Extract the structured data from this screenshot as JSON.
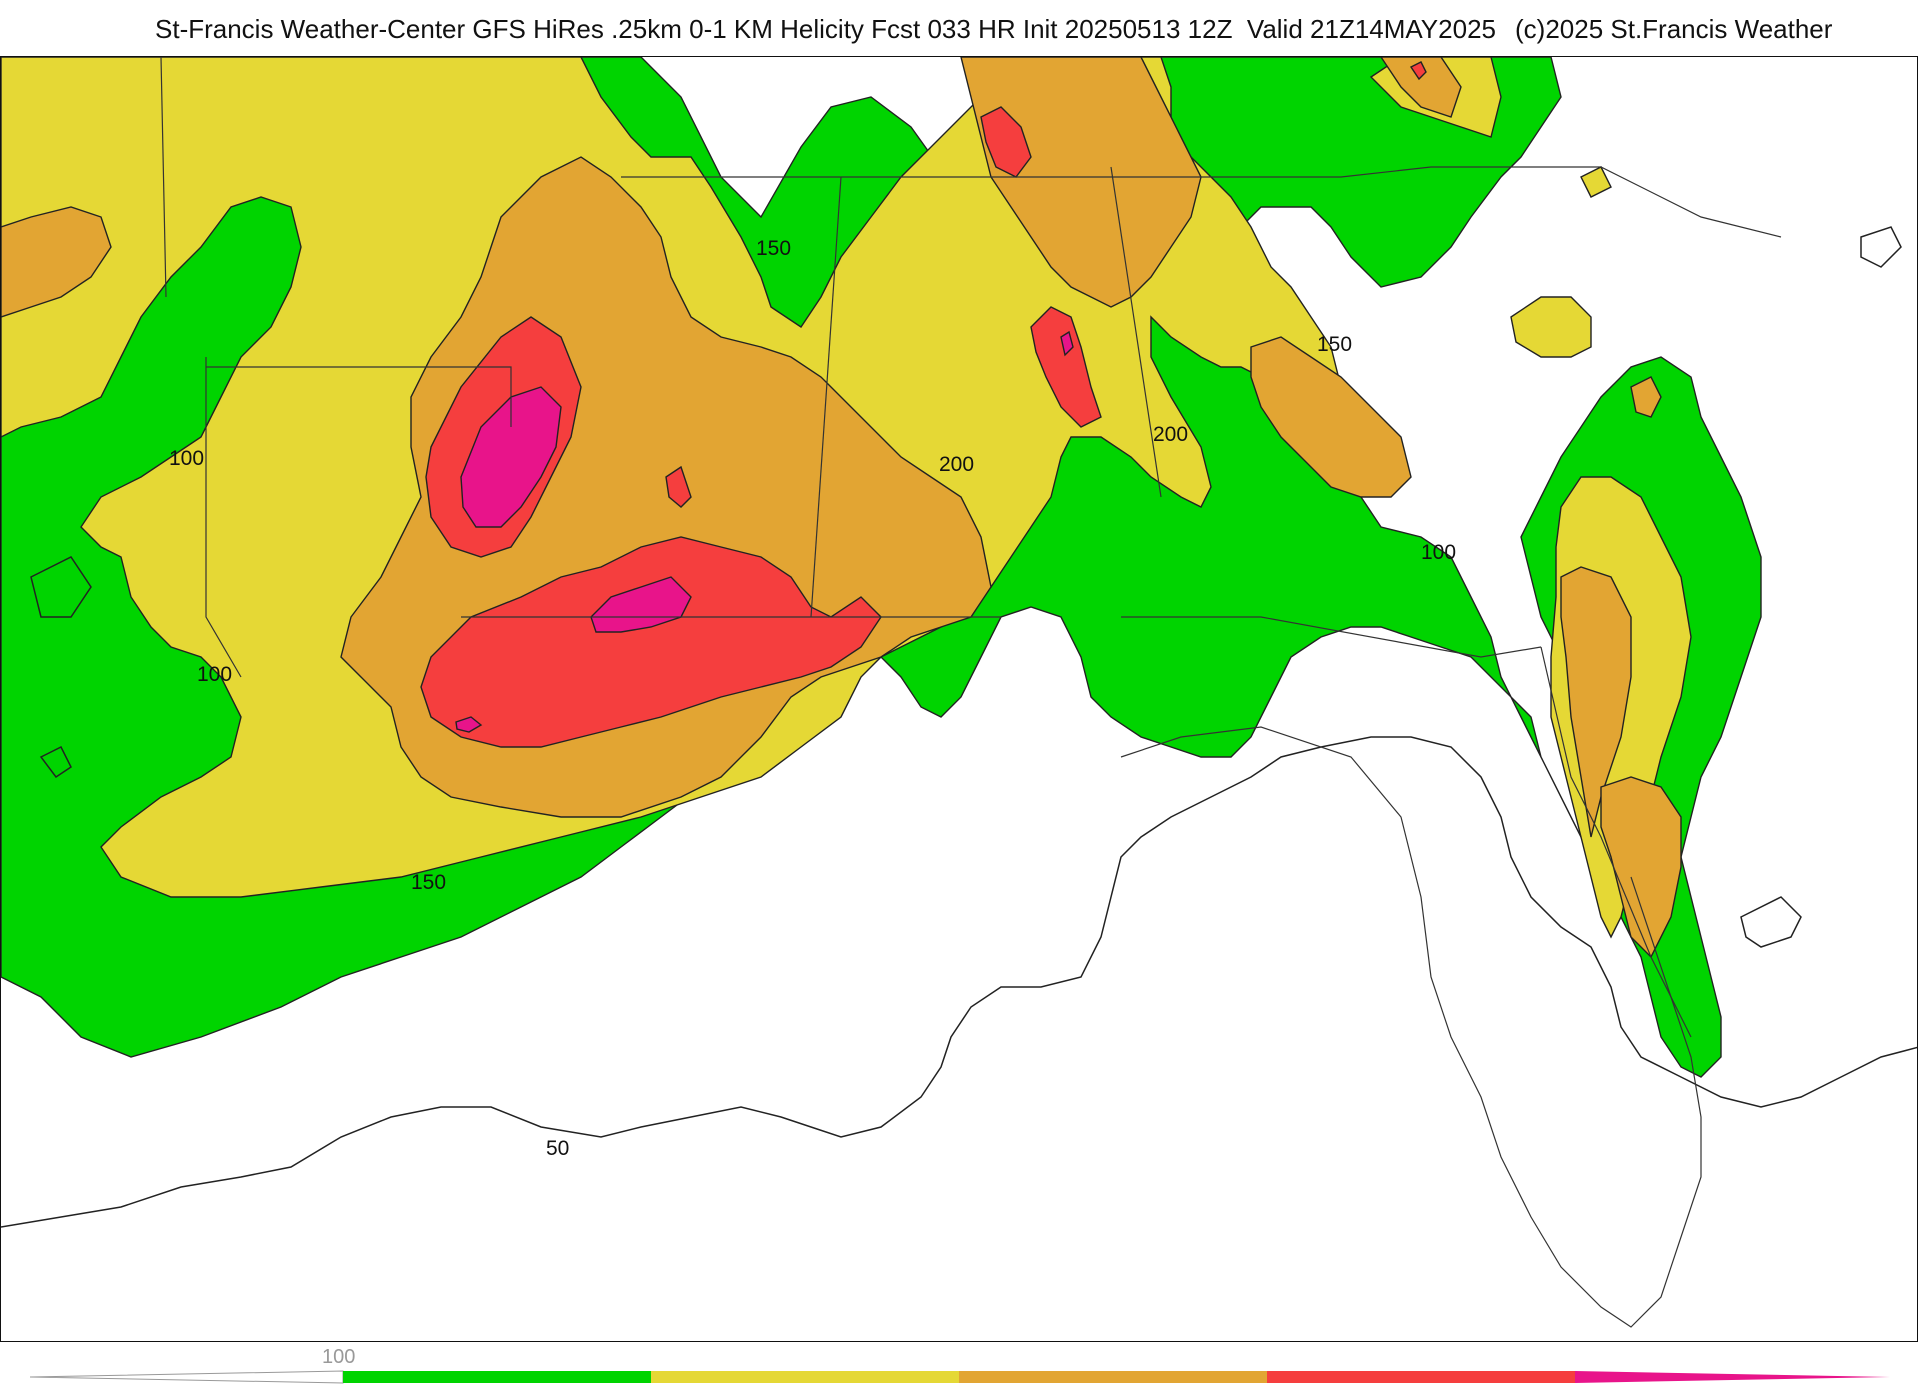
{
  "header": {
    "title": "St-Francis Weather-Center GFS HiRes .25km 0-1 KM Helicity Fcst 033 HR Init 20250513 12Z  Valid 21Z14MAY2025",
    "credit": "(c)2025 St.Francis Weather"
  },
  "map": {
    "contour_labels": [
      "150",
      "100",
      "100",
      "200",
      "200",
      "150",
      "100",
      "150",
      "50"
    ]
  },
  "colorbar": {
    "tick_label": "100",
    "colors": [
      "#00d400",
      "#e5d835",
      "#e2a533",
      "#f53e3e",
      "#e8148a"
    ]
  },
  "colors": {
    "green": "#00d400",
    "yellow": "#e5d835",
    "orange": "#e2a533",
    "red": "#f53e3e",
    "magenta": "#e8148a"
  }
}
